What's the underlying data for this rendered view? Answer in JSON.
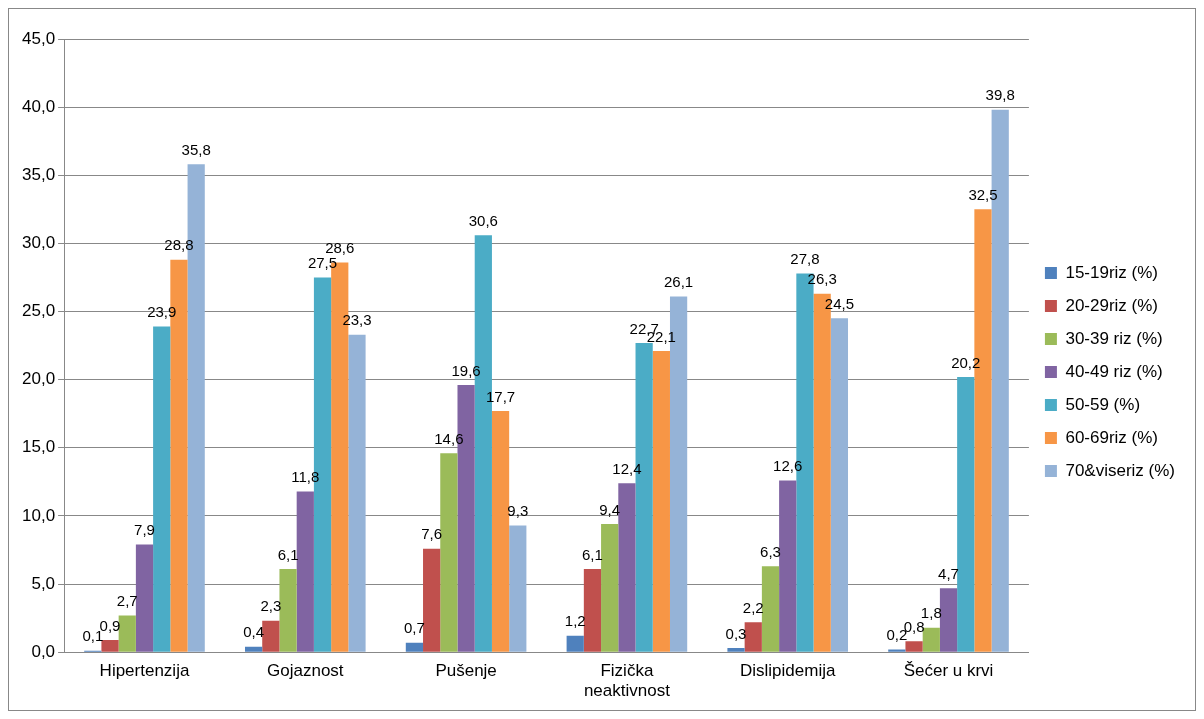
{
  "chart_data": {
    "type": "bar",
    "categories": [
      "Hipertenzija",
      "Gojaznost",
      "Pušenje",
      "Fizička neaktivnost",
      "Dislipidemija",
      "Šećer u krvi"
    ],
    "series": [
      {
        "name": "15-19riz (%)",
        "color": "#4f81bd",
        "values": [
          0.1,
          0.4,
          0.7,
          1.2,
          0.3,
          0.2
        ],
        "value_labels": [
          "0,1",
          "0,4",
          "0,7",
          "1,2",
          "0,3",
          "0,2"
        ]
      },
      {
        "name": "20-29riz (%)",
        "color": "#c0504d",
        "values": [
          0.9,
          2.3,
          7.6,
          6.1,
          2.2,
          0.8
        ],
        "value_labels": [
          "0,9",
          "2,3",
          "7,6",
          "6,1",
          "2,2",
          "0,8"
        ]
      },
      {
        "name": "30-39 riz (%)",
        "color": "#9bbb59",
        "values": [
          2.7,
          6.1,
          14.6,
          9.4,
          6.3,
          1.8
        ],
        "value_labels": [
          "2,7",
          "6,1",
          "14,6",
          "9,4",
          "6,3",
          "1,8"
        ]
      },
      {
        "name": "40-49 riz (%)",
        "color": "#8064a2",
        "values": [
          7.9,
          11.8,
          19.6,
          12.4,
          12.6,
          4.7
        ],
        "value_labels": [
          "7,9",
          "11,8",
          "19,6",
          "12,4",
          "12,6",
          "4,7"
        ]
      },
      {
        "name": "50-59 (%)",
        "color": "#4bacc6",
        "values": [
          23.9,
          27.5,
          30.6,
          22.7,
          27.8,
          20.2
        ],
        "value_labels": [
          "23,9",
          "27,5",
          "30,6",
          "22,7",
          "27,8",
          "20,2"
        ]
      },
      {
        "name": "60-69riz (%)",
        "color": "#f79646",
        "values": [
          28.8,
          28.6,
          17.7,
          22.1,
          26.3,
          32.5
        ],
        "value_labels": [
          "28,8",
          "28,6",
          "17,7",
          "22,1",
          "26,3",
          "32,5"
        ]
      },
      {
        "name": "70&viseriz (%)",
        "color": "#95b3d7",
        "values": [
          35.8,
          23.3,
          9.3,
          26.1,
          24.5,
          39.8
        ],
        "value_labels": [
          "35,8",
          "23,3",
          "9,3",
          "26,1",
          "24,5",
          "39,8"
        ]
      }
    ],
    "ylim": [
      0,
      45
    ],
    "yticks": [
      {
        "value": 0,
        "label": "0,0"
      },
      {
        "value": 5,
        "label": "5,0"
      },
      {
        "value": 10,
        "label": "10,0"
      },
      {
        "value": 15,
        "label": "15,0"
      },
      {
        "value": 20,
        "label": "20,0"
      },
      {
        "value": 25,
        "label": "25,0"
      },
      {
        "value": 30,
        "label": "30,0"
      },
      {
        "value": 35,
        "label": "35,0"
      },
      {
        "value": 40,
        "label": "40,0"
      },
      {
        "value": 45,
        "label": "45,0"
      }
    ],
    "grid": "y",
    "legend": "right"
  }
}
